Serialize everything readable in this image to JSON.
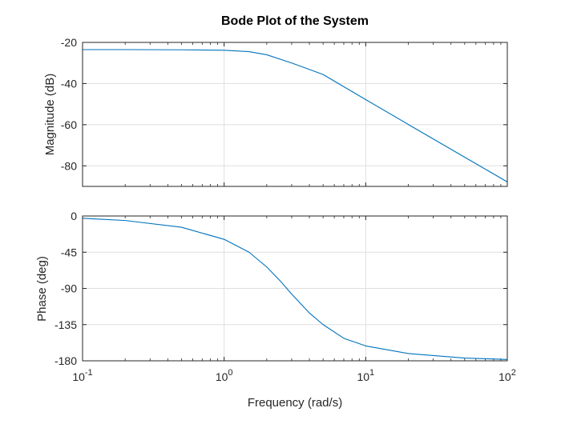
{
  "chart_data": {
    "type": "line",
    "title": "Bode Plot of the System",
    "xlabel": "Frequency (rad/s)",
    "x_scale": "log",
    "xlim": [
      0.1,
      100
    ],
    "x_ticks": [
      {
        "base": "10",
        "exp": "-1"
      },
      {
        "base": "10",
        "exp": "0"
      },
      {
        "base": "10",
        "exp": "1"
      },
      {
        "base": "10",
        "exp": "2"
      }
    ],
    "grid": true,
    "line_color": "#0072BD",
    "panels": [
      {
        "name": "magnitude",
        "ylabel": "Magnitude (dB)",
        "ylim": [
          -90,
          -20
        ],
        "y_ticks": [
          -20,
          -40,
          -60,
          -80
        ],
        "series": [
          {
            "x": [
              0.1,
              0.2,
              0.5,
              1,
              1.5,
              2,
              3,
              5,
              10,
              20,
              50,
              100
            ],
            "values": [
              -23.5,
              -23.5,
              -23.6,
              -23.8,
              -24.5,
              -26,
              -30,
              -35.6,
              -47.8,
              -59.9,
              -75.8,
              -87.8
            ]
          }
        ]
      },
      {
        "name": "phase",
        "ylabel": "Phase (deg)",
        "ylim": [
          -180,
          0
        ],
        "y_ticks": [
          0,
          -45,
          -90,
          -135,
          -180
        ],
        "series": [
          {
            "x": [
              0.1,
              0.2,
              0.5,
              1,
              1.5,
              2,
              2.5,
              3,
              4,
              5,
              7,
              10,
              20,
              50,
              100
            ],
            "values": [
              -2.8,
              -5.6,
              -14,
              -29,
              -45,
              -63.4,
              -81,
              -97.1,
              -120.5,
              -135,
              -152,
              -161.5,
              -171,
              -176.6,
              -178.3
            ]
          }
        ]
      }
    ]
  }
}
